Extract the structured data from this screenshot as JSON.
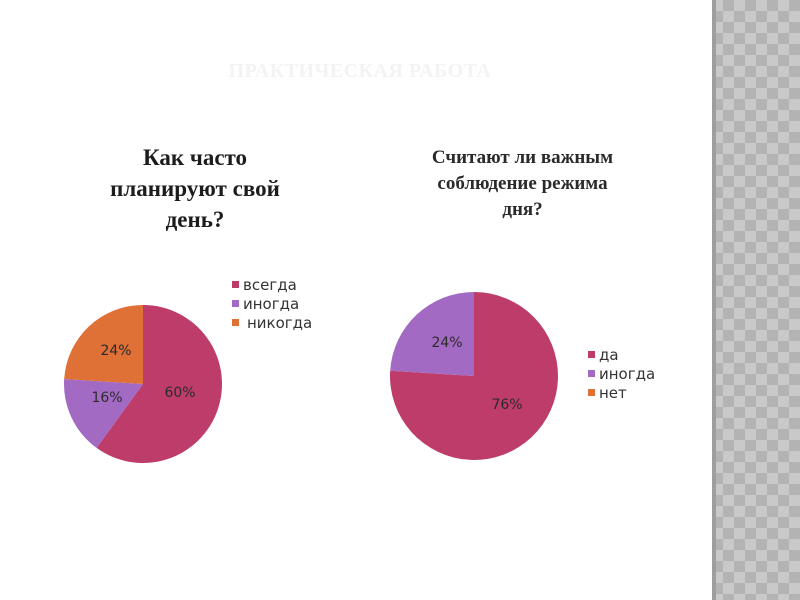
{
  "slide": {
    "title": "ПРАКТИЧЕСКАЯ РАБОТА"
  },
  "colors": {
    "background": "#ffffff",
    "title_faint": "#f3f3f3",
    "slice_always": "#bd3c6a",
    "slice_sometimes": "#a36ac4",
    "slice_never": "#df7036",
    "side_strip": "#c9c9c9"
  },
  "chart_data": [
    {
      "type": "pie",
      "title": "Как часто\nпланируют свой\nдень?",
      "categories": [
        "всегда",
        "иногда",
        "никогда"
      ],
      "values": [
        60,
        16,
        24
      ],
      "labels": [
        "60%",
        "16%",
        "24%"
      ],
      "colors": [
        "#bd3c6a",
        "#a36ac4",
        "#df7036"
      ],
      "legend_position": "right"
    },
    {
      "type": "pie",
      "title": "Считают  ли  важным\nсоблюдение режима\nдня?",
      "categories": [
        "да",
        "иногда",
        "нет"
      ],
      "values": [
        76,
        24,
        0
      ],
      "labels": [
        "76%",
        "24%",
        ""
      ],
      "colors": [
        "#bd3c6a",
        "#a36ac4",
        "#df7036"
      ],
      "legend_position": "right"
    }
  ]
}
